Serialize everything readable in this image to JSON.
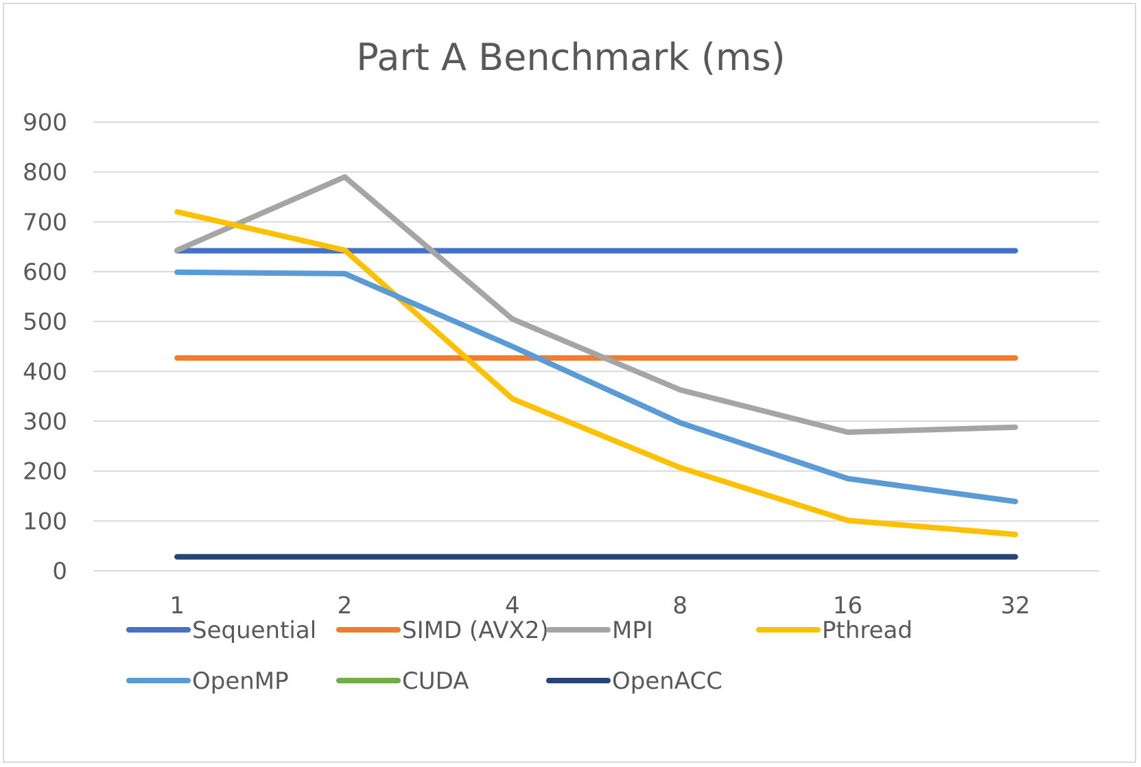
{
  "chart_data": {
    "type": "line",
    "title": "Part A Benchmark (ms)",
    "xlabel": "",
    "ylabel": "",
    "categories": [
      "1",
      "2",
      "4",
      "8",
      "16",
      "32"
    ],
    "ylim": [
      0,
      900
    ],
    "yticks": [
      0,
      100,
      200,
      300,
      400,
      500,
      600,
      700,
      800,
      900
    ],
    "grid": "horizontal",
    "legend_position": "bottom",
    "series": [
      {
        "name": "Sequential",
        "color": "#4472C4",
        "values": [
          642,
          642,
          642,
          642,
          642,
          642
        ]
      },
      {
        "name": "SIMD (AVX2)",
        "color": "#ED7D31",
        "values": [
          427,
          427,
          427,
          427,
          427,
          427
        ]
      },
      {
        "name": "MPI",
        "color": "#A5A5A5",
        "values": [
          643,
          790,
          505,
          363,
          278,
          288
        ]
      },
      {
        "name": "Pthread",
        "color": "#FFC000",
        "values": [
          720,
          643,
          345,
          207,
          101,
          73
        ]
      },
      {
        "name": "OpenMP",
        "color": "#5B9BD5",
        "values": [
          599,
          596,
          450,
          297,
          185,
          139
        ]
      },
      {
        "name": "CUDA",
        "color": "#70AD47",
        "values": [
          28,
          28,
          28,
          28,
          28,
          28
        ]
      },
      {
        "name": "OpenACC",
        "color": "#264478",
        "values": [
          28,
          28,
          28,
          28,
          28,
          28
        ]
      }
    ]
  }
}
